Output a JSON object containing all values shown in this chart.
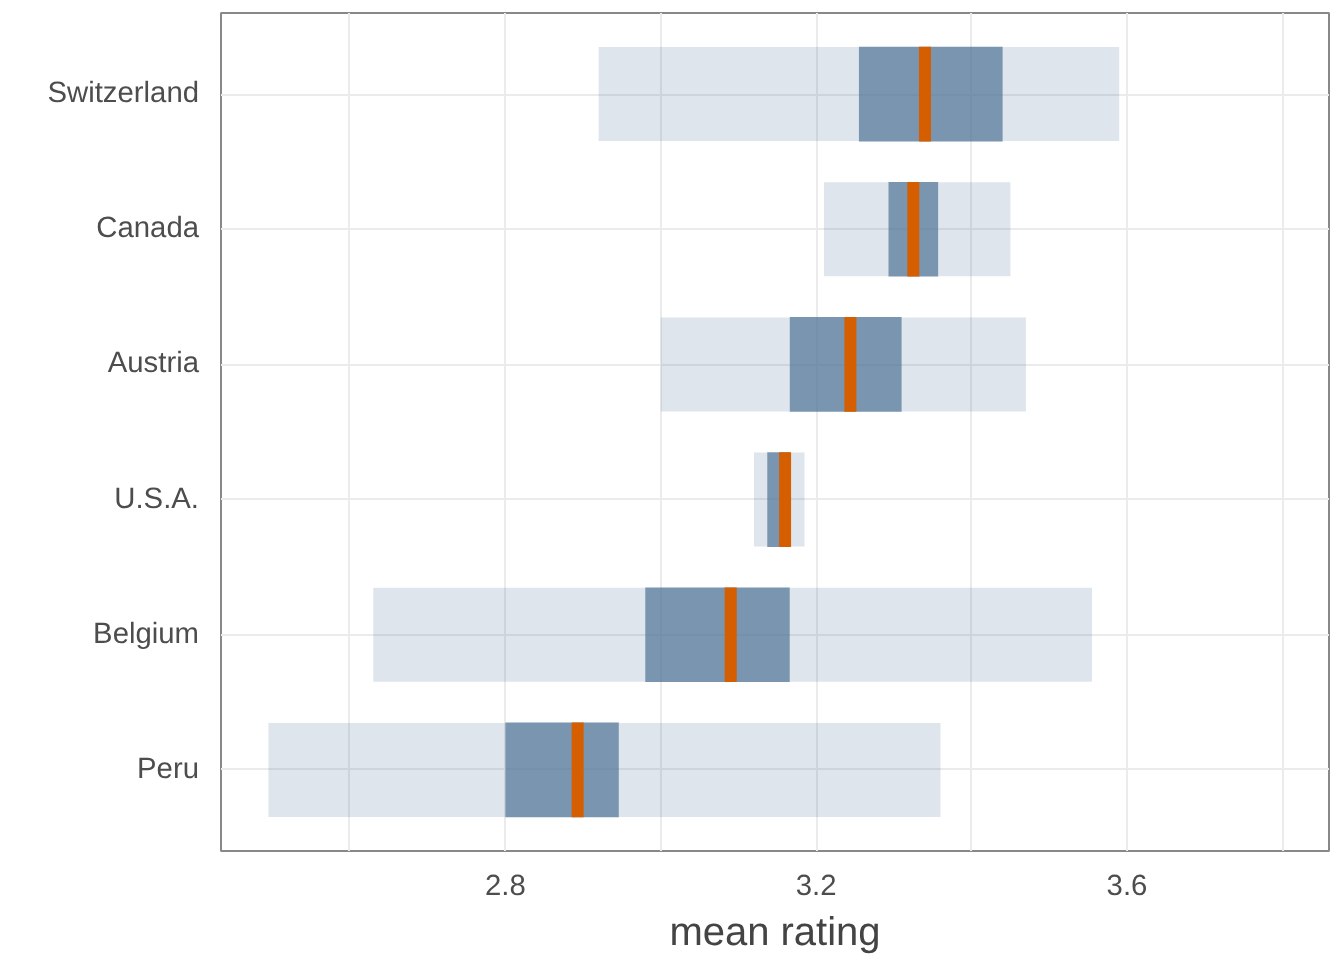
{
  "chart_data": {
    "type": "box",
    "orientation": "horizontal",
    "xlabel": "mean rating",
    "categories": [
      "Switzerland",
      "Canada",
      "Austria",
      "U.S.A.",
      "Belgium",
      "Peru"
    ],
    "series": [
      {
        "color": "#4e7196",
        "boxes": [
          {
            "low": 2.92,
            "q1": 3.255,
            "median": 3.34,
            "q3": 3.44,
            "high": 3.59
          },
          {
            "low": 3.21,
            "q1": 3.293,
            "median": 3.325,
            "q3": 3.357,
            "high": 3.45
          },
          {
            "low": 3.0,
            "q1": 3.166,
            "median": 3.244,
            "q3": 3.31,
            "high": 3.47
          },
          {
            "low": 3.12,
            "q1": 3.137,
            "median": 3.16,
            "q3": 3.166,
            "high": 3.185
          },
          {
            "low": 2.63,
            "q1": 2.98,
            "median": 3.09,
            "q3": 3.166,
            "high": 3.555
          },
          {
            "low": 2.495,
            "q1": 2.8,
            "median": 2.893,
            "q3": 2.946,
            "high": 3.36
          }
        ]
      }
    ],
    "xlim": [
      2.434,
      3.86
    ],
    "xticks": [
      {
        "value": 2.6,
        "label": null
      },
      2.8,
      {
        "value": 3.0,
        "label": null
      },
      3.2,
      {
        "value": 3.4,
        "label": null
      },
      3.6,
      {
        "value": 3.8,
        "label": null
      }
    ],
    "grid": true
  }
}
